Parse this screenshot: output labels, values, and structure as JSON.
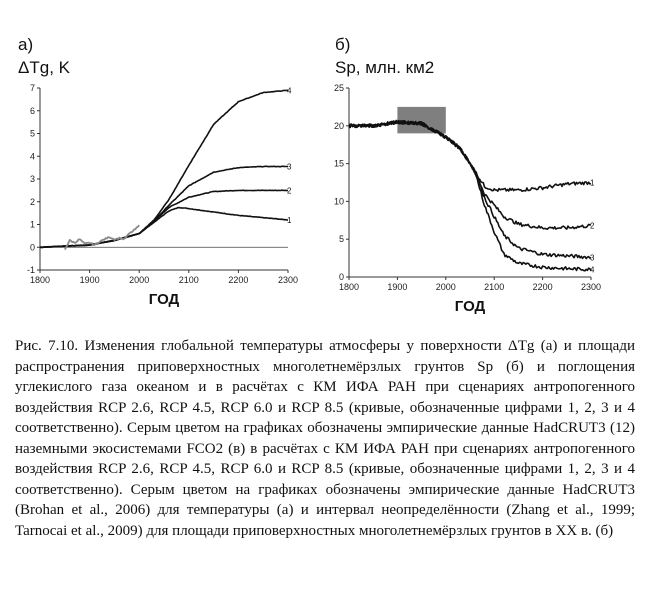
{
  "charts": {
    "a": {
      "panel_label": "а)",
      "ylabel": "ΔTg, K"
    },
    "b": {
      "panel_label": "б)",
      "ylabel": "Sp, млн. км2"
    }
  },
  "chart_data": [
    {
      "type": "line",
      "title": "ΔTg, K",
      "xlabel": "ГОД",
      "ylabel": "ΔTg, K",
      "xlim": [
        1800,
        2300
      ],
      "ylim": [
        -1,
        7
      ],
      "xticks": [
        1800,
        1900,
        2000,
        2100,
        2200,
        2300
      ],
      "yticks": [
        -1,
        0,
        1,
        2,
        3,
        4,
        5,
        6,
        7
      ],
      "series": [
        {
          "name": "1",
          "label": "1",
          "color": "#111111",
          "x": [
            1800,
            1900,
            1950,
            2000,
            2030,
            2060,
            2080,
            2100,
            2150,
            2200,
            2250,
            2300
          ],
          "y": [
            0,
            0.1,
            0.3,
            0.6,
            1.1,
            1.6,
            1.75,
            1.7,
            1.55,
            1.4,
            1.3,
            1.2
          ]
        },
        {
          "name": "2",
          "label": "2",
          "color": "#111111",
          "x": [
            1800,
            1900,
            1950,
            2000,
            2030,
            2060,
            2100,
            2150,
            2200,
            2250,
            2300
          ],
          "y": [
            0,
            0.1,
            0.3,
            0.6,
            1.15,
            1.75,
            2.2,
            2.45,
            2.5,
            2.5,
            2.5
          ]
        },
        {
          "name": "3",
          "label": "3",
          "color": "#111111",
          "x": [
            1800,
            1900,
            1950,
            2000,
            2030,
            2060,
            2100,
            2150,
            2200,
            2250,
            2300
          ],
          "y": [
            0,
            0.1,
            0.3,
            0.6,
            1.15,
            1.85,
            2.7,
            3.3,
            3.5,
            3.55,
            3.55
          ]
        },
        {
          "name": "4",
          "label": "4",
          "color": "#111111",
          "x": [
            1800,
            1900,
            1950,
            2000,
            2030,
            2060,
            2100,
            2150,
            2200,
            2250,
            2300
          ],
          "y": [
            0,
            0.1,
            0.3,
            0.6,
            1.2,
            2.1,
            3.6,
            5.4,
            6.4,
            6.8,
            6.9
          ]
        },
        {
          "name": "HadCRUT3",
          "color": "#888888",
          "x": [
            1850,
            1860,
            1870,
            1880,
            1890,
            1900,
            1910,
            1920,
            1930,
            1940,
            1950,
            1960,
            1970,
            1980,
            1990,
            2000
          ],
          "y": [
            -0.1,
            0.3,
            0.2,
            0.35,
            0.15,
            0.2,
            0.1,
            0.25,
            0.35,
            0.45,
            0.35,
            0.4,
            0.35,
            0.6,
            0.75,
            0.95
          ]
        }
      ]
    },
    {
      "type": "line",
      "title": "Sp, млн. км2",
      "xlabel": "ГОД",
      "ylabel": "Sp, млн. км2",
      "xlim": [
        1800,
        2300
      ],
      "ylim": [
        0,
        25
      ],
      "xticks": [
        1800,
        1900,
        2000,
        2100,
        2200,
        2300
      ],
      "yticks": [
        0,
        5,
        10,
        15,
        20,
        25
      ],
      "uncertainty_band": {
        "x": [
          1900,
          2000
        ],
        "y": [
          19,
          22.5
        ],
        "color": "#7f7f7f"
      },
      "series": [
        {
          "name": "1",
          "label": "1",
          "color": "#111111",
          "x": [
            1800,
            1850,
            1900,
            1950,
            2000,
            2030,
            2060,
            2080,
            2100,
            2150,
            2200,
            2250,
            2300
          ],
          "y": [
            20,
            20,
            20.5,
            20.3,
            18.5,
            17,
            14,
            12,
            11.5,
            11.5,
            11.8,
            12.3,
            12.5
          ]
        },
        {
          "name": "2",
          "label": "2",
          "color": "#111111",
          "x": [
            1800,
            1850,
            1900,
            1950,
            2000,
            2030,
            2060,
            2080,
            2100,
            2120,
            2150,
            2200,
            2250,
            2300
          ],
          "y": [
            20,
            20,
            20.5,
            20.3,
            18.5,
            17,
            14,
            11,
            9.5,
            8,
            7,
            6.5,
            6.5,
            6.8
          ]
        },
        {
          "name": "3",
          "label": "3",
          "color": "#111111",
          "x": [
            1800,
            1850,
            1900,
            1950,
            2000,
            2030,
            2060,
            2080,
            2100,
            2120,
            2150,
            2200,
            2250,
            2300
          ],
          "y": [
            20,
            20,
            20.5,
            20.3,
            18.5,
            17,
            14,
            10.5,
            8,
            5.5,
            3.8,
            3,
            2.8,
            2.6
          ]
        },
        {
          "name": "4",
          "label": "4",
          "color": "#111111",
          "x": [
            1800,
            1850,
            1900,
            1950,
            2000,
            2030,
            2060,
            2080,
            2100,
            2120,
            2150,
            2200,
            2250,
            2300
          ],
          "y": [
            20,
            20,
            20.5,
            20.3,
            18.5,
            17,
            14,
            9.5,
            6,
            3,
            1.8,
            1.3,
            1.1,
            1.0
          ]
        }
      ]
    }
  ],
  "caption": "Рис. 7.10. Изменения глобальной температуры атмосферы у поверхности ΔTg (а) и площади распространения приповерхностных многолетнемёрзлых грунтов Sp (б) и поглощения углекислого газа океаном и в расчётах с КМ ИФА РАН при сценариях антропогенного воздействия RCP 2.6, RCP 4.5, RCP 6.0 и RCP 8.5 (кривые, обозначенные цифрами 1, 2, 3 и 4 соответственно). Серым цветом на графиках обозначены эмпирические данные HadCRUT3 (12) наземными экосистемами FCO2 (в) в расчётах с КМ ИФА РАН при сценариях антропогенного воздействия RCP 2.6, RCP 4.5, RCP 6.0 и RCP 8.5 (кривые, обозначенные цифрами 1, 2, 3 и 4 соответственно). Серым цветом на графиках обозначены эмпирические данные HadCRUT3 (Brohan et al., 2006) для температуры (а) и интервал неопределённости (Zhang et al., 1999; Tarnocai et al., 2009) для площади приповерхностных многолетнемёрзлых грунтов в XX в. (б)"
}
